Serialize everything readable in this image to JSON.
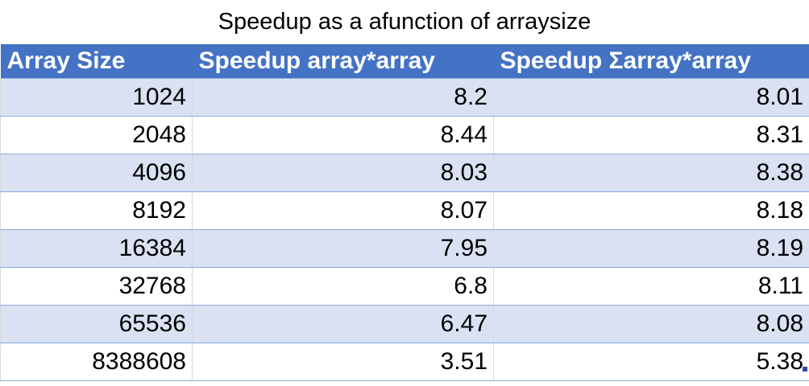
{
  "title": "Speedup as a afunction of arraysize",
  "headers": [
    "Array Size",
    "Speedup array*array",
    "Speedup Σarray*array"
  ],
  "rows": [
    [
      "1024",
      "8.2",
      "8.01"
    ],
    [
      "2048",
      "8.44",
      "8.31"
    ],
    [
      "4096",
      "8.03",
      "8.38"
    ],
    [
      "8192",
      "8.07",
      "8.18"
    ],
    [
      "16384",
      "7.95",
      "8.19"
    ],
    [
      "32768",
      "6.8",
      "8.11"
    ],
    [
      "65536",
      "6.47",
      "8.08"
    ],
    [
      "8388608",
      "3.51",
      "5.38"
    ]
  ],
  "colors": {
    "header_bg": "#4472C4",
    "band_bg": "#D9E1F2"
  }
}
